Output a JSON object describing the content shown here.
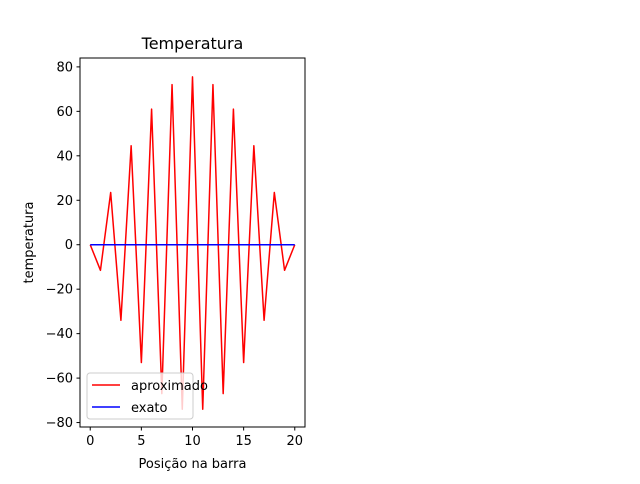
{
  "chart_data": {
    "type": "line",
    "title": "Temperatura",
    "xlabel": "Posição na barra",
    "ylabel": "temperatura",
    "xlim": [
      -1,
      21
    ],
    "ylim": [
      -82,
      84
    ],
    "xticks": [
      0,
      5,
      10,
      15,
      20
    ],
    "yticks": [
      -80,
      -60,
      -40,
      -20,
      0,
      20,
      40,
      60,
      80
    ],
    "xtick_labels": [
      "0",
      "5",
      "10",
      "15",
      "20"
    ],
    "ytick_labels": [
      "−80",
      "−60",
      "−40",
      "−20",
      "0",
      "20",
      "40",
      "60",
      "80"
    ],
    "grid": false,
    "legend_position": "lower-left",
    "x": [
      0,
      1,
      2,
      3,
      4,
      5,
      6,
      7,
      8,
      9,
      10,
      11,
      12,
      13,
      14,
      15,
      16,
      17,
      18,
      19,
      20
    ],
    "series": [
      {
        "name": "aproximado",
        "color": "#ff0000",
        "values": [
          0,
          -11.5,
          23.5,
          -34,
          44.5,
          -53,
          61,
          -67,
          72,
          -74,
          75.5,
          -74,
          72,
          -67,
          61,
          -53,
          44.5,
          -34,
          23.5,
          -11.5,
          0
        ]
      },
      {
        "name": "exato",
        "color": "#0000ff",
        "values": [
          0,
          0,
          0,
          0,
          0,
          0,
          0,
          0,
          0,
          0,
          0,
          0,
          0,
          0,
          0,
          0,
          0,
          0,
          0,
          0,
          0
        ]
      }
    ]
  }
}
